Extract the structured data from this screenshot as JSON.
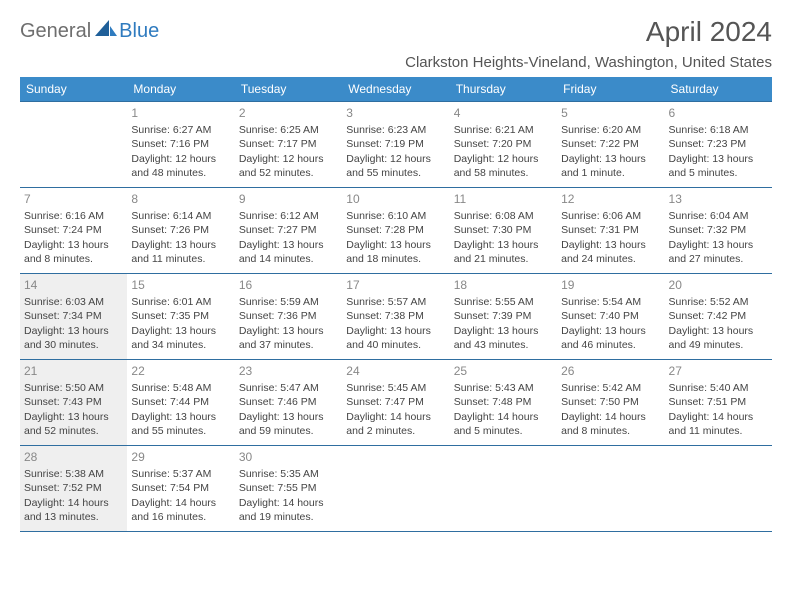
{
  "brand": {
    "general": "General",
    "blue": "Blue"
  },
  "title": "April 2024",
  "location": "Clarkston Heights-Vineland, Washington, United States",
  "colors": {
    "header_bg": "#3b8bc9",
    "border": "#2f6ea0",
    "shade": "#efefef",
    "title_color": "#555555",
    "text_color": "#444444"
  },
  "typography": {
    "title_fontsize": 28,
    "body_fontsize": 10.5
  },
  "day_headers": [
    "Sunday",
    "Monday",
    "Tuesday",
    "Wednesday",
    "Thursday",
    "Friday",
    "Saturday"
  ],
  "weeks": [
    [
      {
        "day": "",
        "lines": [
          "",
          "",
          "",
          ""
        ]
      },
      {
        "day": "1",
        "lines": [
          "Sunrise: 6:27 AM",
          "Sunset: 7:16 PM",
          "Daylight: 12 hours",
          "and 48 minutes."
        ]
      },
      {
        "day": "2",
        "lines": [
          "Sunrise: 6:25 AM",
          "Sunset: 7:17 PM",
          "Daylight: 12 hours",
          "and 52 minutes."
        ]
      },
      {
        "day": "3",
        "lines": [
          "Sunrise: 6:23 AM",
          "Sunset: 7:19 PM",
          "Daylight: 12 hours",
          "and 55 minutes."
        ]
      },
      {
        "day": "4",
        "lines": [
          "Sunrise: 6:21 AM",
          "Sunset: 7:20 PM",
          "Daylight: 12 hours",
          "and 58 minutes."
        ]
      },
      {
        "day": "5",
        "lines": [
          "Sunrise: 6:20 AM",
          "Sunset: 7:22 PM",
          "Daylight: 13 hours",
          "and 1 minute."
        ]
      },
      {
        "day": "6",
        "lines": [
          "Sunrise: 6:18 AM",
          "Sunset: 7:23 PM",
          "Daylight: 13 hours",
          "and 5 minutes."
        ]
      }
    ],
    [
      {
        "day": "7",
        "lines": [
          "Sunrise: 6:16 AM",
          "Sunset: 7:24 PM",
          "Daylight: 13 hours",
          "and 8 minutes."
        ]
      },
      {
        "day": "8",
        "lines": [
          "Sunrise: 6:14 AM",
          "Sunset: 7:26 PM",
          "Daylight: 13 hours",
          "and 11 minutes."
        ]
      },
      {
        "day": "9",
        "lines": [
          "Sunrise: 6:12 AM",
          "Sunset: 7:27 PM",
          "Daylight: 13 hours",
          "and 14 minutes."
        ]
      },
      {
        "day": "10",
        "lines": [
          "Sunrise: 6:10 AM",
          "Sunset: 7:28 PM",
          "Daylight: 13 hours",
          "and 18 minutes."
        ]
      },
      {
        "day": "11",
        "lines": [
          "Sunrise: 6:08 AM",
          "Sunset: 7:30 PM",
          "Daylight: 13 hours",
          "and 21 minutes."
        ]
      },
      {
        "day": "12",
        "lines": [
          "Sunrise: 6:06 AM",
          "Sunset: 7:31 PM",
          "Daylight: 13 hours",
          "and 24 minutes."
        ]
      },
      {
        "day": "13",
        "lines": [
          "Sunrise: 6:04 AM",
          "Sunset: 7:32 PM",
          "Daylight: 13 hours",
          "and 27 minutes."
        ]
      }
    ],
    [
      {
        "day": "14",
        "lines": [
          "Sunrise: 6:03 AM",
          "Sunset: 7:34 PM",
          "Daylight: 13 hours",
          "and 30 minutes."
        ],
        "shade": true
      },
      {
        "day": "15",
        "lines": [
          "Sunrise: 6:01 AM",
          "Sunset: 7:35 PM",
          "Daylight: 13 hours",
          "and 34 minutes."
        ]
      },
      {
        "day": "16",
        "lines": [
          "Sunrise: 5:59 AM",
          "Sunset: 7:36 PM",
          "Daylight: 13 hours",
          "and 37 minutes."
        ]
      },
      {
        "day": "17",
        "lines": [
          "Sunrise: 5:57 AM",
          "Sunset: 7:38 PM",
          "Daylight: 13 hours",
          "and 40 minutes."
        ]
      },
      {
        "day": "18",
        "lines": [
          "Sunrise: 5:55 AM",
          "Sunset: 7:39 PM",
          "Daylight: 13 hours",
          "and 43 minutes."
        ]
      },
      {
        "day": "19",
        "lines": [
          "Sunrise: 5:54 AM",
          "Sunset: 7:40 PM",
          "Daylight: 13 hours",
          "and 46 minutes."
        ]
      },
      {
        "day": "20",
        "lines": [
          "Sunrise: 5:52 AM",
          "Sunset: 7:42 PM",
          "Daylight: 13 hours",
          "and 49 minutes."
        ]
      }
    ],
    [
      {
        "day": "21",
        "lines": [
          "Sunrise: 5:50 AM",
          "Sunset: 7:43 PM",
          "Daylight: 13 hours",
          "and 52 minutes."
        ],
        "shade": true
      },
      {
        "day": "22",
        "lines": [
          "Sunrise: 5:48 AM",
          "Sunset: 7:44 PM",
          "Daylight: 13 hours",
          "and 55 minutes."
        ]
      },
      {
        "day": "23",
        "lines": [
          "Sunrise: 5:47 AM",
          "Sunset: 7:46 PM",
          "Daylight: 13 hours",
          "and 59 minutes."
        ]
      },
      {
        "day": "24",
        "lines": [
          "Sunrise: 5:45 AM",
          "Sunset: 7:47 PM",
          "Daylight: 14 hours",
          "and 2 minutes."
        ]
      },
      {
        "day": "25",
        "lines": [
          "Sunrise: 5:43 AM",
          "Sunset: 7:48 PM",
          "Daylight: 14 hours",
          "and 5 minutes."
        ]
      },
      {
        "day": "26",
        "lines": [
          "Sunrise: 5:42 AM",
          "Sunset: 7:50 PM",
          "Daylight: 14 hours",
          "and 8 minutes."
        ]
      },
      {
        "day": "27",
        "lines": [
          "Sunrise: 5:40 AM",
          "Sunset: 7:51 PM",
          "Daylight: 14 hours",
          "and 11 minutes."
        ]
      }
    ],
    [
      {
        "day": "28",
        "lines": [
          "Sunrise: 5:38 AM",
          "Sunset: 7:52 PM",
          "Daylight: 14 hours",
          "and 13 minutes."
        ],
        "shade": true
      },
      {
        "day": "29",
        "lines": [
          "Sunrise: 5:37 AM",
          "Sunset: 7:54 PM",
          "Daylight: 14 hours",
          "and 16 minutes."
        ]
      },
      {
        "day": "30",
        "lines": [
          "Sunrise: 5:35 AM",
          "Sunset: 7:55 PM",
          "Daylight: 14 hours",
          "and 19 minutes."
        ]
      },
      {
        "day": "",
        "lines": [
          "",
          "",
          "",
          ""
        ]
      },
      {
        "day": "",
        "lines": [
          "",
          "",
          "",
          ""
        ]
      },
      {
        "day": "",
        "lines": [
          "",
          "",
          "",
          ""
        ]
      },
      {
        "day": "",
        "lines": [
          "",
          "",
          "",
          ""
        ]
      }
    ]
  ]
}
